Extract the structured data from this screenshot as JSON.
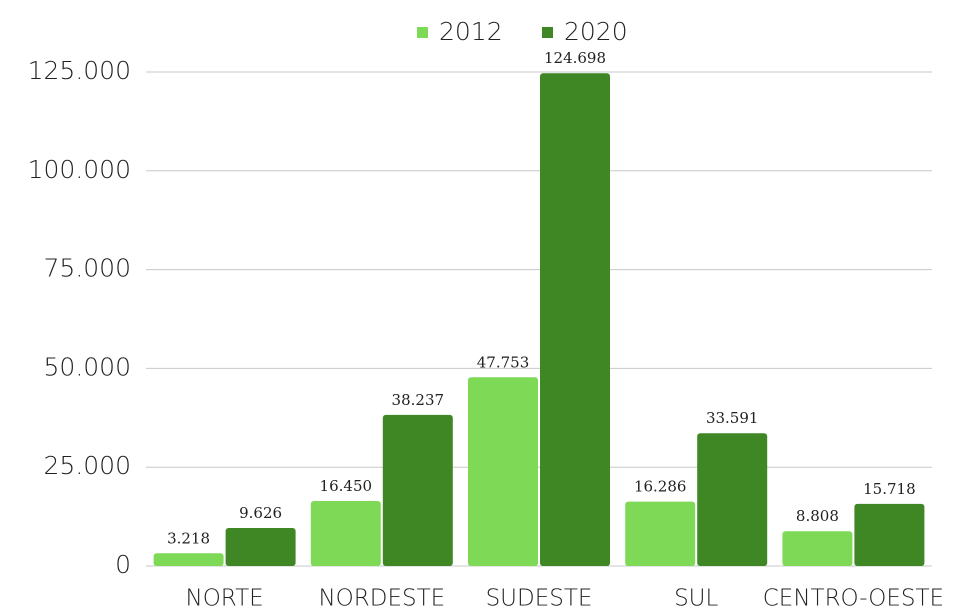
{
  "chart_data": {
    "type": "bar",
    "categories": [
      "NORTE",
      "NORDESTE",
      "SUDESTE",
      "SUL",
      "CENTRO-OESTE"
    ],
    "series": [
      {
        "name": "2012",
        "color": "#7ed957",
        "values": [
          3218,
          16450,
          47753,
          16286,
          8808
        ],
        "value_labels": [
          "3.218",
          "16.450",
          "47.753",
          "16.286",
          "8.808"
        ]
      },
      {
        "name": "2020",
        "color": "#3f8624",
        "values": [
          9626,
          38237,
          124698,
          33591,
          15718
        ],
        "value_labels": [
          "9.626",
          "38.237",
          "124.698",
          "33.591",
          "15.718"
        ]
      }
    ],
    "ylim": [
      0,
      125000
    ],
    "yticks": [
      0,
      {
        "value": 25000,
        "label": "25.000"
      },
      {
        "value": 50000,
        "label": "50.000"
      },
      {
        "value": 75000,
        "label": "75.000"
      },
      {
        "value": 100000,
        "label": "100.000"
      },
      {
        "value": 125000,
        "label": "125.000"
      }
    ],
    "grid": true,
    "legend": "top"
  }
}
